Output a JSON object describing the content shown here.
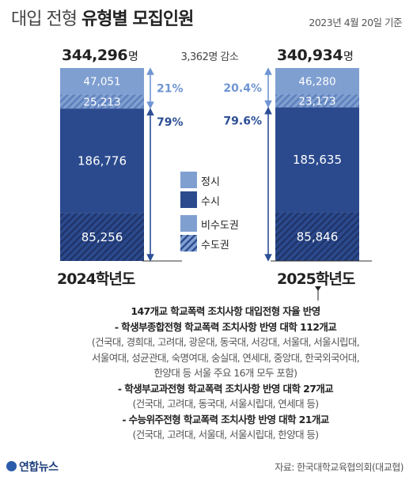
{
  "title_light": "대입 전형",
  "title_bold": "유형별 모집인원",
  "date": "2023년 4월 20일 기준",
  "unit": "명",
  "decrease": "3,362명 감소",
  "chart_data": {
    "type": "bar",
    "stacked": true,
    "categories": [
      "2024학년도",
      "2025학년도"
    ],
    "totals": [
      344296,
      340934
    ],
    "totals_label": [
      "344,296",
      "340,934"
    ],
    "series": [
      {
        "name": "정시 수도권",
        "values": [
          25213,
          23173
        ],
        "labels": [
          "25,213",
          "23,173"
        ],
        "group": "정시",
        "region": "수도권"
      },
      {
        "name": "정시 비수도권",
        "values": [
          47051,
          46280
        ],
        "labels": [
          "47,051",
          "46,280"
        ],
        "group": "정시",
        "region": "비수도권"
      },
      {
        "name": "수시 수도권",
        "values": [
          85256,
          85846
        ],
        "labels": [
          "85,256",
          "85,846"
        ],
        "group": "수시",
        "region": "수도권"
      },
      {
        "name": "수시 비수도권",
        "values": [
          186776,
          185635
        ],
        "labels": [
          "186,776",
          "185,635"
        ],
        "group": "수시",
        "region": "비수도권"
      }
    ],
    "share_labels": {
      "2024학년도": {
        "정시": "21%",
        "수시": "79%"
      },
      "2025학년도": {
        "정시": "20.4%",
        "수시": "79.6%"
      }
    },
    "legend": [
      "정시",
      "수시",
      "비수도권",
      "수도권"
    ],
    "colors": {
      "정시": "#7f9fd1",
      "수시": "#2b4a8e",
      "jeongsi_stripe": "#5d7fbc",
      "susi_stripe": "#1f3468",
      "arrow_jeongsi": "#6f95d2",
      "arrow_susi": "#2d4f96"
    }
  },
  "notes": {
    "heading": "147개교 학교폭력 조치사항 대입전형 자율 반영",
    "items": [
      {
        "title": "- 학생부종합전형 학교폭력 조치사항 반영 대학 112개교",
        "detail": [
          "(건국대, 경희대, 고려대, 광운대, 동국대, 서강대, 서울대, 서울시립대,",
          "서울여대, 성균관대, 숙명여대, 숭실대, 연세대, 중앙대, 한국외국어대,",
          "한양대 등 서울 주요 16개 모두 포함)"
        ]
      },
      {
        "title": "- 학생부교과전형 학교폭력 조치사항 반영 대학 27개교",
        "detail": [
          "(건국대, 고려대, 동국대, 서울시립대, 연세대 등)"
        ]
      },
      {
        "title": "- 수능위주전형 학교폭력 조치사항 반영 대학 21개교",
        "detail": [
          "(건국대, 고려대, 서울대, 서울시립대, 한양대 등)"
        ]
      }
    ]
  },
  "logo": "연합뉴스",
  "source": "자료: 한국대학교육협의회(대교협)"
}
